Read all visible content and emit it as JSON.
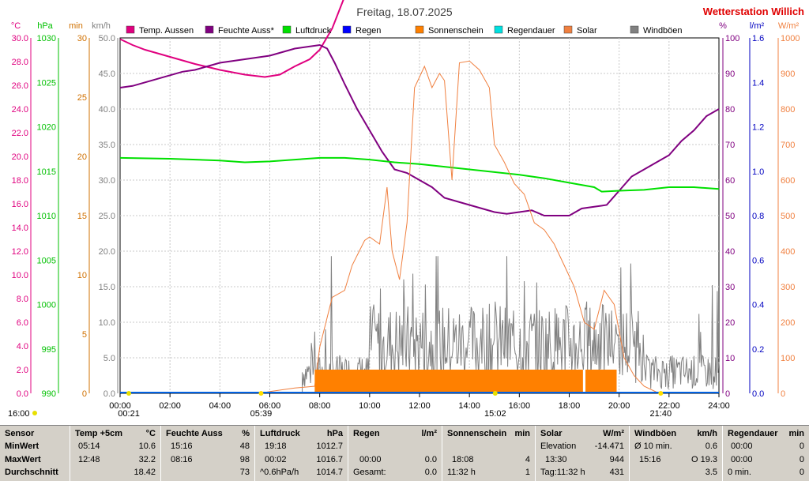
{
  "header": {
    "title": "Freitag, 18.07.2025",
    "station": "Wetterstation Willich",
    "station_color": "#e00000"
  },
  "chart_data": {
    "type": "line",
    "title": "Freitag, 18.07.2025",
    "x_ticks": [
      "00:00",
      "02:00",
      "04:00",
      "06:00",
      "08:00",
      "10:00",
      "12:00",
      "14:00",
      "16:00",
      "18:00",
      "20:00",
      "22:00",
      "24:00"
    ],
    "x_range_hours": [
      0,
      24
    ],
    "grid": true,
    "legend_position": "top",
    "legend": [
      {
        "name": "Temp. Aussen",
        "color": "#e0007f"
      },
      {
        "name": "Feuchte Auss*",
        "color": "#800080"
      },
      {
        "name": "Luftdruck",
        "color": "#00e000"
      },
      {
        "name": "Regen",
        "color": "#0000ff"
      },
      {
        "name": "Sonnenschein",
        "color": "#ff8000"
      },
      {
        "name": "Regendauer",
        "color": "#00e0e0"
      },
      {
        "name": "Solar",
        "color": "#f08040"
      },
      {
        "name": "Windböen",
        "color": "#808080"
      }
    ],
    "axes": {
      "temp": {
        "unit": "°C",
        "color": "#e0007f",
        "min": 0,
        "max": 30,
        "ticks": [
          "0.0",
          "2.0",
          "4.0",
          "6.0",
          "8.0",
          "10.0",
          "12.0",
          "14.0",
          "16.0",
          "18.0",
          "20.0",
          "22.0",
          "24.0",
          "26.0",
          "28.0",
          "30.0"
        ]
      },
      "pressure": {
        "unit": "hPa",
        "color": "#00c000",
        "min": 990,
        "max": 1030,
        "ticks": [
          "990",
          "995",
          "1000",
          "1005",
          "1010",
          "1015",
          "1020",
          "1025",
          "1030"
        ]
      },
      "sunshine_min": {
        "unit": "min",
        "color": "#d07000",
        "min": 0,
        "max": 30,
        "ticks": [
          "0",
          "5",
          "10",
          "15",
          "20",
          "25",
          "30"
        ]
      },
      "wind": {
        "unit": "km/h",
        "color": "#808080",
        "min": 0,
        "max": 50,
        "ticks": [
          "0.0",
          "5.0",
          "10.0",
          "15.0",
          "20.0",
          "25.0",
          "30.0",
          "35.0",
          "40.0",
          "45.0",
          "50.0"
        ]
      },
      "humidity": {
        "unit": "%",
        "color": "#800080",
        "min": 0,
        "max": 100,
        "ticks": [
          "0",
          "10",
          "20",
          "30",
          "40",
          "50",
          "60",
          "70",
          "80",
          "90",
          "100"
        ]
      },
      "rain": {
        "unit": "l/m²",
        "color": "#0000c0",
        "min": 0,
        "max": 1.6,
        "ticks": [
          "0.0",
          "0.2",
          "0.4",
          "0.6",
          "0.8",
          "1.0",
          "1.2",
          "1.4",
          "1.6"
        ]
      },
      "solar": {
        "unit": "W/m²",
        "color": "#f08040",
        "min": 0,
        "max": 1000,
        "ticks": [
          "0",
          "100",
          "200",
          "300",
          "400",
          "500",
          "600",
          "700",
          "800",
          "900",
          "1000"
        ]
      }
    },
    "series": [
      {
        "name": "Temp. Aussen",
        "axis": "temp",
        "color": "#e0007f",
        "points": [
          [
            0,
            29.9
          ],
          [
            0.5,
            29.4
          ],
          [
            1,
            29.0
          ],
          [
            2,
            28.4
          ],
          [
            3,
            27.8
          ],
          [
            4,
            27.3
          ],
          [
            5,
            26.9
          ],
          [
            5.8,
            26.7
          ],
          [
            6.4,
            26.9
          ],
          [
            7,
            27.6
          ],
          [
            7.6,
            28.2
          ],
          [
            8,
            29.0
          ],
          [
            8.5,
            30.8
          ],
          [
            9,
            33.5
          ],
          [
            9.5,
            36.0
          ],
          [
            10,
            38.0
          ],
          [
            10.5,
            39.5
          ],
          [
            11,
            40.0
          ],
          [
            11.5,
            40.8
          ],
          [
            12,
            41.8
          ],
          [
            12.5,
            42.5
          ],
          [
            13,
            43.5
          ],
          [
            13.5,
            44.5
          ],
          [
            14,
            45.0
          ],
          [
            14.5,
            45.3
          ],
          [
            15,
            46.0
          ],
          [
            15.5,
            47.0
          ],
          [
            16,
            47.2
          ],
          [
            16.5,
            47.4
          ],
          [
            17,
            47.7
          ],
          [
            17.5,
            48.0
          ],
          [
            18,
            47.6
          ],
          [
            18.5,
            47.0
          ],
          [
            19,
            45.5
          ],
          [
            19.5,
            44.5
          ],
          [
            20,
            44.0
          ],
          [
            20.5,
            42.8
          ],
          [
            21,
            41.5
          ],
          [
            21.5,
            40.0
          ],
          [
            22,
            39.0
          ],
          [
            22.5,
            38.4
          ],
          [
            23,
            37.8
          ],
          [
            23.5,
            36.5
          ],
          [
            24,
            35.7
          ]
        ]
      },
      {
        "name": "Feuchte Auss*",
        "axis": "humidity",
        "color": "#800080",
        "points": [
          [
            0,
            86
          ],
          [
            0.5,
            86.5
          ],
          [
            1,
            87.5
          ],
          [
            1.5,
            88.5
          ],
          [
            2,
            89.5
          ],
          [
            2.5,
            90.5
          ],
          [
            3,
            91
          ],
          [
            3.5,
            92
          ],
          [
            4,
            93
          ],
          [
            4.5,
            93.5
          ],
          [
            5,
            94
          ],
          [
            5.5,
            94.5
          ],
          [
            6,
            95
          ],
          [
            6.5,
            96
          ],
          [
            7,
            97
          ],
          [
            7.5,
            97.5
          ],
          [
            8,
            98
          ],
          [
            8.3,
            97
          ],
          [
            8.6,
            93
          ],
          [
            9,
            87
          ],
          [
            9.5,
            80
          ],
          [
            10,
            74
          ],
          [
            10.5,
            68
          ],
          [
            11,
            63
          ],
          [
            11.5,
            62
          ],
          [
            12,
            60
          ],
          [
            12.5,
            58
          ],
          [
            13,
            55
          ],
          [
            13.5,
            54
          ],
          [
            14,
            53
          ],
          [
            14.5,
            52
          ],
          [
            15,
            51
          ],
          [
            15.5,
            50.5
          ],
          [
            16,
            51
          ],
          [
            16.5,
            51.5
          ],
          [
            17,
            50
          ],
          [
            17.5,
            50
          ],
          [
            18,
            50
          ],
          [
            18.5,
            52
          ],
          [
            19,
            52.5
          ],
          [
            19.5,
            53
          ],
          [
            20,
            57
          ],
          [
            20.5,
            61
          ],
          [
            21,
            63
          ],
          [
            21.5,
            65
          ],
          [
            22,
            67
          ],
          [
            22.5,
            71
          ],
          [
            23,
            74
          ],
          [
            23.5,
            78
          ],
          [
            24,
            80
          ]
        ]
      },
      {
        "name": "Luftdruck",
        "axis": "pressure",
        "color": "#00e000",
        "points": [
          [
            0,
            1016.5
          ],
          [
            2,
            1016.4
          ],
          [
            4,
            1016.2
          ],
          [
            5,
            1016.0
          ],
          [
            6,
            1016.1
          ],
          [
            7,
            1016.3
          ],
          [
            8,
            1016.5
          ],
          [
            9,
            1016.5
          ],
          [
            10,
            1016.3
          ],
          [
            11,
            1016.0
          ],
          [
            12,
            1015.8
          ],
          [
            13,
            1015.5
          ],
          [
            14,
            1015.2
          ],
          [
            15,
            1014.9
          ],
          [
            16,
            1014.6
          ],
          [
            17,
            1014.2
          ],
          [
            18,
            1013.7
          ],
          [
            19,
            1013.2
          ],
          [
            19.3,
            1012.7
          ],
          [
            20,
            1012.8
          ],
          [
            21,
            1012.9
          ],
          [
            22,
            1013.2
          ],
          [
            23,
            1013.2
          ],
          [
            24,
            1013.0
          ]
        ]
      },
      {
        "name": "Solar",
        "axis": "solar",
        "color": "#f08040",
        "points": [
          [
            5.6,
            0
          ],
          [
            6,
            5
          ],
          [
            7,
            15
          ],
          [
            7.8,
            20
          ],
          [
            8,
            130
          ],
          [
            8.5,
            270
          ],
          [
            9,
            290
          ],
          [
            9.3,
            360
          ],
          [
            9.8,
            430
          ],
          [
            10,
            440
          ],
          [
            10.4,
            420
          ],
          [
            10.7,
            580
          ],
          [
            10.9,
            400
          ],
          [
            11.2,
            320
          ],
          [
            11.5,
            480
          ],
          [
            11.8,
            860
          ],
          [
            12.2,
            920
          ],
          [
            12.5,
            860
          ],
          [
            12.8,
            900
          ],
          [
            13,
            880
          ],
          [
            13.3,
            600
          ],
          [
            13.6,
            930
          ],
          [
            14,
            935
          ],
          [
            14.4,
            910
          ],
          [
            14.8,
            860
          ],
          [
            15,
            700
          ],
          [
            15.4,
            650
          ],
          [
            15.8,
            590
          ],
          [
            16.2,
            560
          ],
          [
            16.6,
            480
          ],
          [
            17,
            460
          ],
          [
            17.4,
            420
          ],
          [
            17.8,
            360
          ],
          [
            18.2,
            300
          ],
          [
            18.6,
            200
          ],
          [
            19,
            180
          ],
          [
            19.4,
            290
          ],
          [
            19.8,
            250
          ],
          [
            20.2,
            100
          ],
          [
            20.6,
            50
          ],
          [
            21,
            20
          ],
          [
            21.6,
            0
          ]
        ]
      },
      {
        "name": "Sonnenschein",
        "axis": "sunshine_min",
        "color": "#ff8000",
        "segments": [
          [
            7.8,
            18.55,
            2
          ],
          [
            18.65,
            19.9,
            2
          ]
        ]
      }
    ],
    "wind_gusts": {
      "axis": "wind",
      "color": "#808080",
      "start_h": 7.3,
      "end_h": 24,
      "max": 19.3
    },
    "markers": {
      "sunrise": "05:39",
      "sunset": "21:40",
      "moonrise": "00:21",
      "moonset": "15:02",
      "moon_left": "16:00"
    }
  },
  "summary": {
    "sensor": {
      "title": "Sensor",
      "min": "MinWert",
      "max": "MaxWert",
      "avg": "Durchschnitt"
    },
    "temp": {
      "title": "Temp +5cm",
      "unit": "°C",
      "min_time": "05:14",
      "min_val": "10.6",
      "max_time": "12:48",
      "max_val": "32.2",
      "avg_val": "18.42"
    },
    "humidity": {
      "title": "Feuchte Auss",
      "unit": "%",
      "min_time": "15:16",
      "min_val": "48",
      "max_time": "08:16",
      "max_val": "98",
      "avg_val": "73"
    },
    "pressure": {
      "title": "Luftdruck",
      "unit": "hPa",
      "min_time": "19:18",
      "min_val": "1012.7",
      "max_time": "00:02",
      "max_val": "1016.7",
      "avg_label": "^0.6hPa/h",
      "avg_val": "1014.7"
    },
    "rain": {
      "title": "Regen",
      "unit": "l/m²",
      "max_time": "00:00",
      "max_val": "0.0",
      "avg_label": "Gesamt:",
      "avg_val": "0.0"
    },
    "sunshine": {
      "title": "Sonnenschein",
      "unit": "min",
      "max_time": "18:08",
      "max_val": "4",
      "avg_label": "11:32 h",
      "avg_val": "1"
    },
    "solar": {
      "title": "Solar",
      "unit": "W/m²",
      "min_label": "Elevation",
      "min_val": "-14.471",
      "max_time": "13:30",
      "max_val": "944",
      "avg_label": "Tag:11:32 h",
      "avg_val": "431"
    },
    "wind": {
      "title": "Windböen",
      "unit": "km/h",
      "min_label": "Ø 10 min.",
      "min_val": "0.6",
      "max_time": "15:16",
      "max_val": "O 19.3",
      "avg_val": "3.5"
    },
    "rainduration": {
      "title": "Regendauer",
      "unit": "min",
      "min_time": "00:00",
      "min_val": "0",
      "max_time": "00:00",
      "max_val": "0",
      "avg_label": "0 min.",
      "avg_val": "0"
    }
  }
}
